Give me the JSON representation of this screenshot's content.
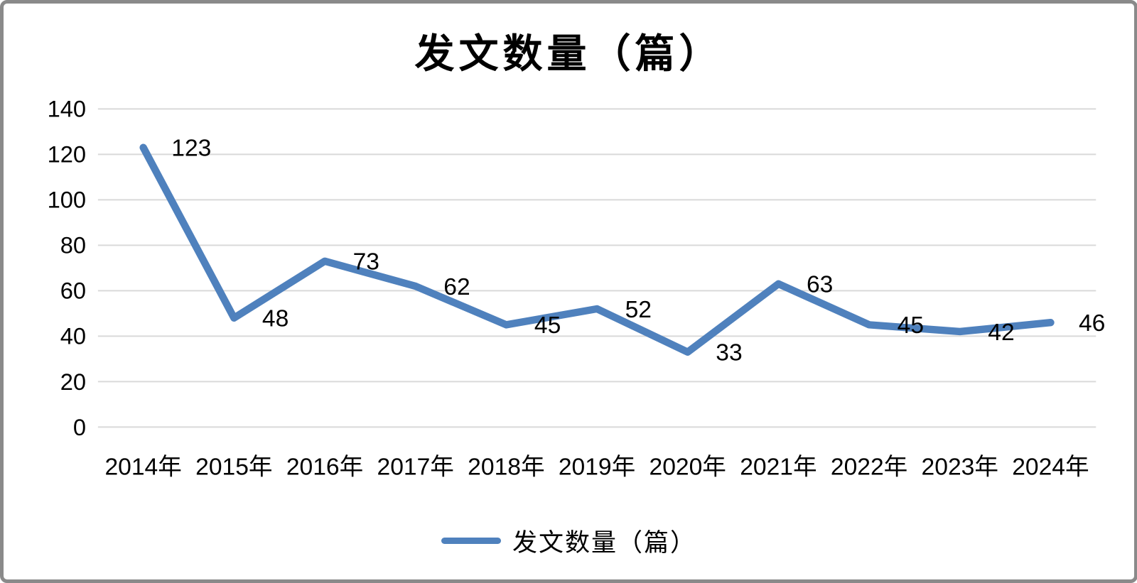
{
  "chart_data": {
    "type": "line",
    "title": "发文数量（篇）",
    "categories": [
      "2014年",
      "2015年",
      "2016年",
      "2017年",
      "2018年",
      "2019年",
      "2020年",
      "2021年",
      "2022年",
      "2023年",
      "2024年"
    ],
    "series": [
      {
        "name": "发文数量（篇）",
        "values": [
          123,
          48,
          73,
          62,
          45,
          52,
          33,
          63,
          45,
          42,
          46
        ]
      }
    ],
    "y_axis": {
      "min": 0,
      "max": 140,
      "step": 20,
      "tick_labels": [
        "0",
        "20",
        "40",
        "60",
        "80",
        "100",
        "120",
        "140"
      ]
    },
    "grid": true,
    "data_labels": true,
    "legend_position": "bottom",
    "legend_entries": [
      "发文数量（篇）"
    ]
  },
  "colors": {
    "line": "#4F81BD",
    "grid": "#D9D9D9",
    "text": "#000000",
    "frame_border": "#8A8A8A",
    "background": "#FFFFFF"
  }
}
